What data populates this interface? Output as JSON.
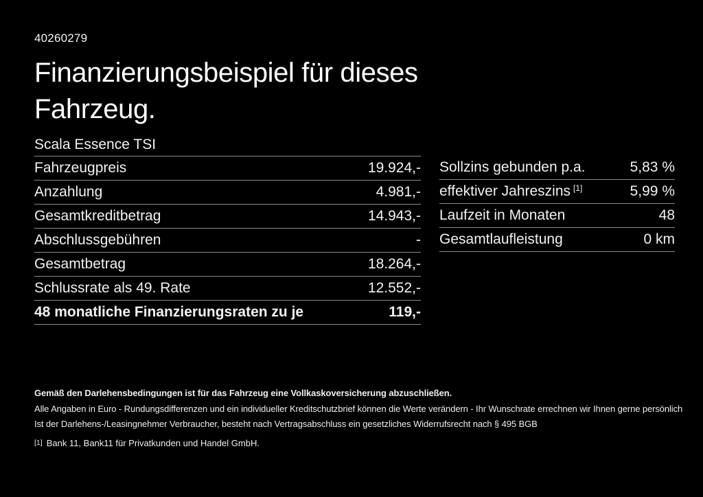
{
  "page": {
    "ref_number": "40260279",
    "title_line1": "Finanzierungsbeispiel für dieses",
    "title_line2": "Fahrzeug.",
    "model": "Scala Essence TSI"
  },
  "finance_table": {
    "rows": [
      {
        "label": "Fahrzeugpreis",
        "value": "19.924,-"
      },
      {
        "label": "Anzahlung",
        "value": "4.981,-"
      },
      {
        "label": "Gesamtkreditbetrag",
        "value": "14.943,-"
      },
      {
        "label": "Abschlussgebühren",
        "value": "-"
      },
      {
        "label": "Gesamtbetrag",
        "value": "18.264,-"
      },
      {
        "label": "Schlussrate als 49. Rate",
        "value": "12.552,-"
      },
      {
        "label": "48 monatliche Finanzierungsraten zu je",
        "value": "119,-"
      }
    ]
  },
  "conditions_table": {
    "rows": [
      {
        "label": "Sollzins gebunden p.a.",
        "sup": "",
        "value": "5,83 %"
      },
      {
        "label": "effektiver Jahreszins",
        "sup": "[1]",
        "value": "5,99 %"
      },
      {
        "label": "Laufzeit in Monaten",
        "sup": "",
        "value": "48"
      },
      {
        "label": "Gesamtlaufleistung",
        "sup": "",
        "value": "0 km"
      }
    ]
  },
  "footer": {
    "insurance_note": "Gemäß den Darlehensbedingungen ist für das Fahrzeug eine Vollkaskoversicherung abzuschließen.",
    "disclaimer": "Alle Angaben in Euro - Rundungsdifferenzen und ein individueller Kreditschutzbrief können die Werte verändern - Ihr Wunschrate errechnen wir Ihnen gerne persönlich",
    "withdrawal_note": "Ist der Darlehens-/Leasingnehmer Verbraucher, besteht nach Vertragsabschluss ein gesetzliches Widerrufsrecht nach § 495 BGB",
    "footnote_marker": "[1]",
    "footnote_text": "Bank 11, Bank11 für Privatkunden und Handel GmbH."
  },
  "colors": {
    "background": "#000000",
    "text": "#f2f2f2",
    "divider": "#8b8b8b"
  }
}
